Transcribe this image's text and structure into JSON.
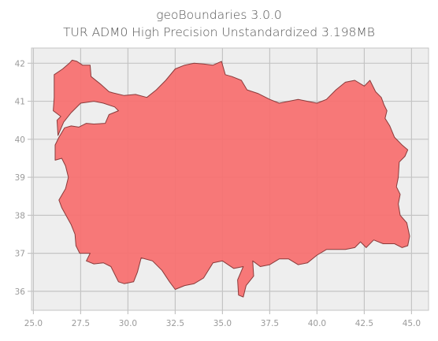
{
  "figure": {
    "title": "geoBoundaries 3.0.0",
    "subtitle": "TUR ADM0 High Precision Unstandardized 3.198MB"
  },
  "chart_data": {
    "type": "map",
    "region": "TUR ADM0",
    "fill_color": "#f77171",
    "edge_color": "#8a3b3b",
    "background_color": "#eeeeee",
    "grid_color": "#c4c4c4",
    "grid": true,
    "xlim": [
      24.9,
      45.9
    ],
    "ylim": [
      35.5,
      42.4
    ],
    "x_ticks": [
      "25.0",
      "27.5",
      "30.0",
      "32.5",
      "35.0",
      "37.5",
      "40.0",
      "42.5",
      "45.0"
    ],
    "y_ticks": [
      "36",
      "37",
      "38",
      "39",
      "40",
      "41",
      "42"
    ],
    "outline": [
      [
        26.1,
        41.1
      ],
      [
        26.1,
        41.7
      ],
      [
        26.55,
        41.85
      ],
      [
        26.9,
        42.0
      ],
      [
        27.05,
        42.08
      ],
      [
        27.3,
        42.05
      ],
      [
        27.6,
        41.95
      ],
      [
        28.0,
        41.95
      ],
      [
        28.05,
        41.65
      ],
      [
        28.55,
        41.45
      ],
      [
        29.0,
        41.25
      ],
      [
        29.2,
        41.22
      ],
      [
        29.8,
        41.15
      ],
      [
        30.4,
        41.18
      ],
      [
        31.0,
        41.1
      ],
      [
        31.5,
        41.3
      ],
      [
        32.0,
        41.55
      ],
      [
        32.5,
        41.85
      ],
      [
        33.0,
        41.95
      ],
      [
        33.5,
        42.0
      ],
      [
        34.0,
        41.98
      ],
      [
        34.5,
        41.95
      ],
      [
        34.95,
        42.05
      ],
      [
        35.15,
        41.7
      ],
      [
        35.5,
        41.65
      ],
      [
        36.0,
        41.55
      ],
      [
        36.3,
        41.3
      ],
      [
        36.9,
        41.2
      ],
      [
        37.5,
        41.05
      ],
      [
        38.0,
        40.95
      ],
      [
        39.0,
        41.05
      ],
      [
        39.5,
        41.0
      ],
      [
        40.0,
        40.95
      ],
      [
        40.5,
        41.05
      ],
      [
        41.0,
        41.3
      ],
      [
        41.5,
        41.5
      ],
      [
        42.0,
        41.55
      ],
      [
        42.5,
        41.4
      ],
      [
        42.8,
        41.55
      ],
      [
        43.1,
        41.25
      ],
      [
        43.4,
        41.1
      ],
      [
        43.55,
        40.9
      ],
      [
        43.7,
        40.75
      ],
      [
        43.6,
        40.55
      ],
      [
        43.85,
        40.35
      ],
      [
        44.1,
        40.05
      ],
      [
        44.5,
        39.85
      ],
      [
        44.8,
        39.72
      ],
      [
        44.65,
        39.55
      ],
      [
        44.35,
        39.4
      ],
      [
        44.3,
        39.0
      ],
      [
        44.2,
        38.75
      ],
      [
        44.4,
        38.55
      ],
      [
        44.3,
        38.3
      ],
      [
        44.4,
        38.0
      ],
      [
        44.75,
        37.8
      ],
      [
        44.9,
        37.45
      ],
      [
        44.8,
        37.2
      ],
      [
        44.5,
        37.15
      ],
      [
        44.1,
        37.25
      ],
      [
        43.5,
        37.25
      ],
      [
        43.0,
        37.35
      ],
      [
        42.6,
        37.15
      ],
      [
        42.3,
        37.3
      ],
      [
        42.0,
        37.15
      ],
      [
        41.5,
        37.1
      ],
      [
        41.0,
        37.1
      ],
      [
        40.5,
        37.1
      ],
      [
        40.0,
        36.95
      ],
      [
        39.5,
        36.75
      ],
      [
        39.0,
        36.7
      ],
      [
        38.5,
        36.85
      ],
      [
        38.0,
        36.85
      ],
      [
        37.5,
        36.7
      ],
      [
        37.0,
        36.65
      ],
      [
        36.6,
        36.8
      ],
      [
        36.65,
        36.4
      ],
      [
        36.25,
        36.15
      ],
      [
        36.1,
        35.85
      ],
      [
        35.85,
        35.9
      ],
      [
        35.8,
        36.3
      ],
      [
        36.1,
        36.65
      ],
      [
        35.6,
        36.6
      ],
      [
        35.0,
        36.8
      ],
      [
        34.5,
        36.75
      ],
      [
        34.0,
        36.35
      ],
      [
        33.5,
        36.2
      ],
      [
        33.0,
        36.15
      ],
      [
        32.5,
        36.05
      ],
      [
        32.2,
        36.25
      ],
      [
        31.8,
        36.55
      ],
      [
        31.3,
        36.8
      ],
      [
        30.7,
        36.88
      ],
      [
        30.5,
        36.5
      ],
      [
        30.3,
        36.25
      ],
      [
        29.8,
        36.2
      ],
      [
        29.5,
        36.25
      ],
      [
        29.1,
        36.65
      ],
      [
        28.7,
        36.75
      ],
      [
        28.2,
        36.72
      ],
      [
        27.8,
        36.8
      ],
      [
        28.0,
        37.0
      ],
      [
        27.45,
        37.0
      ],
      [
        27.25,
        37.2
      ],
      [
        27.2,
        37.5
      ],
      [
        27.0,
        37.75
      ],
      [
        26.5,
        38.2
      ],
      [
        26.35,
        38.4
      ],
      [
        26.7,
        38.7
      ],
      [
        26.85,
        39.0
      ],
      [
        26.7,
        39.3
      ],
      [
        26.5,
        39.5
      ],
      [
        26.15,
        39.45
      ],
      [
        26.15,
        39.85
      ],
      [
        26.35,
        40.05
      ],
      [
        26.65,
        40.3
      ],
      [
        27.0,
        40.35
      ],
      [
        27.4,
        40.32
      ],
      [
        27.8,
        40.42
      ],
      [
        28.2,
        40.4
      ],
      [
        28.8,
        40.42
      ],
      [
        29.0,
        40.65
      ],
      [
        29.5,
        40.75
      ],
      [
        29.3,
        40.85
      ],
      [
        28.7,
        40.95
      ],
      [
        28.2,
        41.0
      ],
      [
        27.5,
        40.95
      ],
      [
        27.0,
        40.7
      ],
      [
        26.6,
        40.45
      ],
      [
        26.3,
        40.1
      ],
      [
        26.25,
        40.5
      ],
      [
        26.45,
        40.6
      ],
      [
        26.05,
        40.75
      ]
    ]
  }
}
